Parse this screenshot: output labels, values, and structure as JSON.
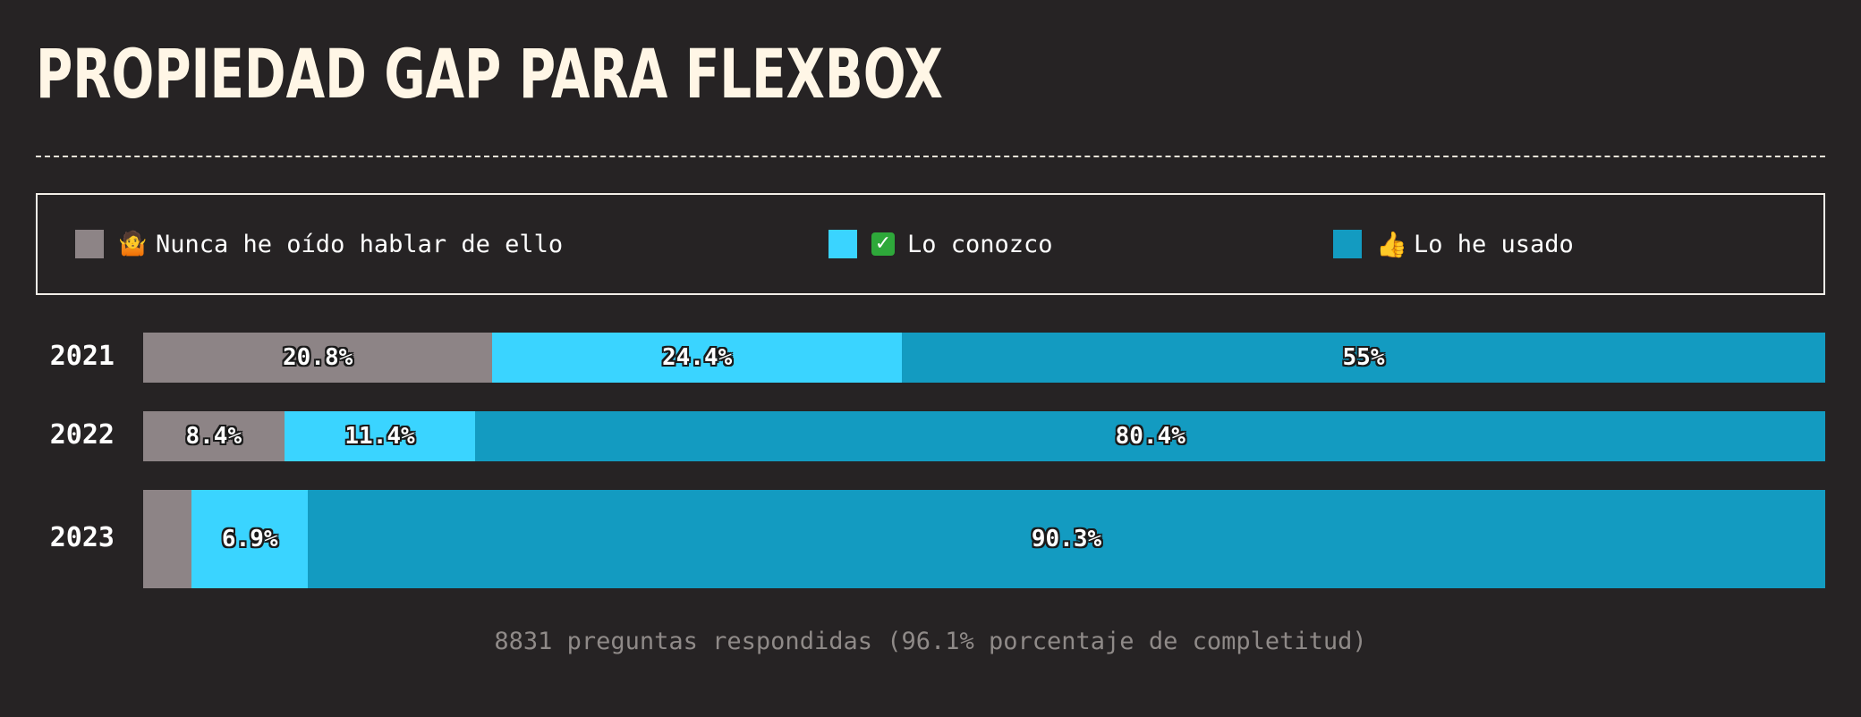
{
  "title": "PROPIEDAD GAP PARA FLEXBOX",
  "legend": [
    {
      "icon": "shrug-icon",
      "glyph": "🤷",
      "label": "Nunca he oído hablar de ello",
      "color": "#8d8486"
    },
    {
      "icon": "check-icon",
      "glyph": "✓",
      "label": "Lo conozco",
      "color": "#3ad4ff"
    },
    {
      "icon": "thumbs-up-icon",
      "glyph": "👍",
      "label": "Lo he usado",
      "color": "#139bc1"
    }
  ],
  "chart_data": {
    "type": "bar",
    "orientation": "horizontal-stacked-100",
    "categories": [
      "2021",
      "2022",
      "2023"
    ],
    "series": [
      {
        "name": "Nunca he oído hablar de ello",
        "values": [
          20.8,
          8.4,
          2.9
        ],
        "labels": [
          "20.8%",
          "8.4%",
          ""
        ]
      },
      {
        "name": "Lo conozco",
        "values": [
          24.4,
          11.4,
          6.9
        ],
        "labels": [
          "24.4%",
          "11.4%",
          "6.9%"
        ]
      },
      {
        "name": "Lo he usado",
        "values": [
          55,
          80.4,
          90.3
        ],
        "labels": [
          "55%",
          "80.4%",
          "90.3%"
        ]
      }
    ],
    "xlim": [
      0,
      100
    ]
  },
  "footer": "8831 preguntas respondidas (96.1% porcentaje de completitud)"
}
